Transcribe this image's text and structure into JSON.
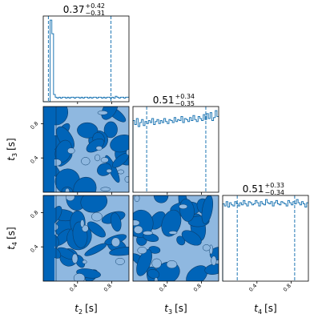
{
  "chart_data": {
    "type": "corner",
    "parameters": [
      "t_2",
      "t_3",
      "t_4"
    ],
    "axis_labels": {
      "t_2": {
        "symbol": "t",
        "sub": "2",
        "unit": "[s]"
      },
      "t_3": {
        "symbol": "t",
        "sub": "3",
        "unit": "[s]"
      },
      "t_4": {
        "symbol": "t",
        "sub": "4",
        "unit": "[s]"
      }
    },
    "range": [
      0.0,
      1.0
    ],
    "ticks": [
      0.4,
      0.8
    ],
    "tick_labels": [
      "0.4",
      "0.8"
    ],
    "colors": {
      "line": "#1f77b4",
      "fill_dark": "#0064b8",
      "fill_light": "#8fb8e0",
      "axes": "#000000"
    },
    "diagonal": [
      {
        "parameter": "t_2",
        "title": {
          "median": "0.37",
          "plus": "+0.42",
          "minus": "−0.31"
        },
        "quantiles": [
          0.06,
          0.79
        ],
        "histogram": {
          "bin_edges_start": 0.0,
          "bin_width": 0.02,
          "counts": [
            0,
            0,
            0,
            0,
            0.9,
            0.75,
            0.08,
            0.05,
            0.04,
            0.05,
            0.04,
            0.05,
            0.05,
            0.04,
            0.05,
            0.04,
            0.05,
            0.05,
            0.04,
            0.05,
            0.05,
            0.04,
            0.05,
            0.04,
            0.05,
            0.05,
            0.04,
            0.05,
            0.04,
            0.05,
            0.05,
            0.04,
            0.05,
            0.05,
            0.04,
            0.05,
            0.04,
            0.05,
            0.05,
            0.04,
            0.05,
            0.04,
            0.06,
            0.05,
            0.04,
            0.05,
            0.05,
            0.04,
            0.05,
            0.05
          ]
        }
      },
      {
        "parameter": "t_3",
        "title": {
          "median": "0.51",
          "plus": "+0.34",
          "minus": "−0.35"
        },
        "quantiles": [
          0.16,
          0.85
        ],
        "histogram": {
          "bin_edges_start": 0.0,
          "bin_width": 0.02,
          "counts": [
            0.72,
            0.68,
            0.74,
            0.66,
            0.7,
            0.73,
            0.67,
            0.71,
            0.69,
            0.72,
            0.7,
            0.74,
            0.68,
            0.71,
            0.73,
            0.69,
            0.72,
            0.7,
            0.74,
            0.71,
            0.69,
            0.73,
            0.72,
            0.7,
            0.75,
            0.71,
            0.73,
            0.72,
            0.76,
            0.7,
            0.74,
            0.73,
            0.71,
            0.75,
            0.72,
            0.77,
            0.73,
            0.71,
            0.76,
            0.74,
            0.72,
            0.78,
            0.73,
            0.79,
            0.74,
            0.8,
            0.72,
            0.75,
            0.82,
            0.76
          ]
        }
      },
      {
        "parameter": "t_4",
        "title": {
          "median": "0.51",
          "plus": "+0.33",
          "minus": "−0.34"
        },
        "quantiles": [
          0.17,
          0.84
        ],
        "histogram": {
          "bin_edges_start": 0.0,
          "bin_width": 0.02,
          "counts": [
            0.72,
            0.7,
            0.74,
            0.69,
            0.73,
            0.71,
            0.7,
            0.74,
            0.72,
            0.7,
            0.73,
            0.71,
            0.75,
            0.72,
            0.7,
            0.74,
            0.73,
            0.71,
            0.72,
            0.75,
            0.73,
            0.7,
            0.74,
            0.72,
            0.71,
            0.76,
            0.73,
            0.72,
            0.74,
            0.7,
            0.73,
            0.75,
            0.72,
            0.71,
            0.74,
            0.73,
            0.72,
            0.7,
            0.75,
            0.73,
            0.71,
            0.74,
            0.72,
            0.76,
            0.73,
            0.71,
            0.74,
            0.72,
            0.69,
            0.73
          ]
        }
      }
    ],
    "density_panels": [
      {
        "x": "t_2",
        "y": "t_3",
        "seed": 11
      },
      {
        "x": "t_2",
        "y": "t_4",
        "seed": 23
      },
      {
        "x": "t_3",
        "y": "t_4",
        "seed": 37
      }
    ],
    "title": "",
    "xlabel": "",
    "ylabel": "",
    "grid": false
  }
}
